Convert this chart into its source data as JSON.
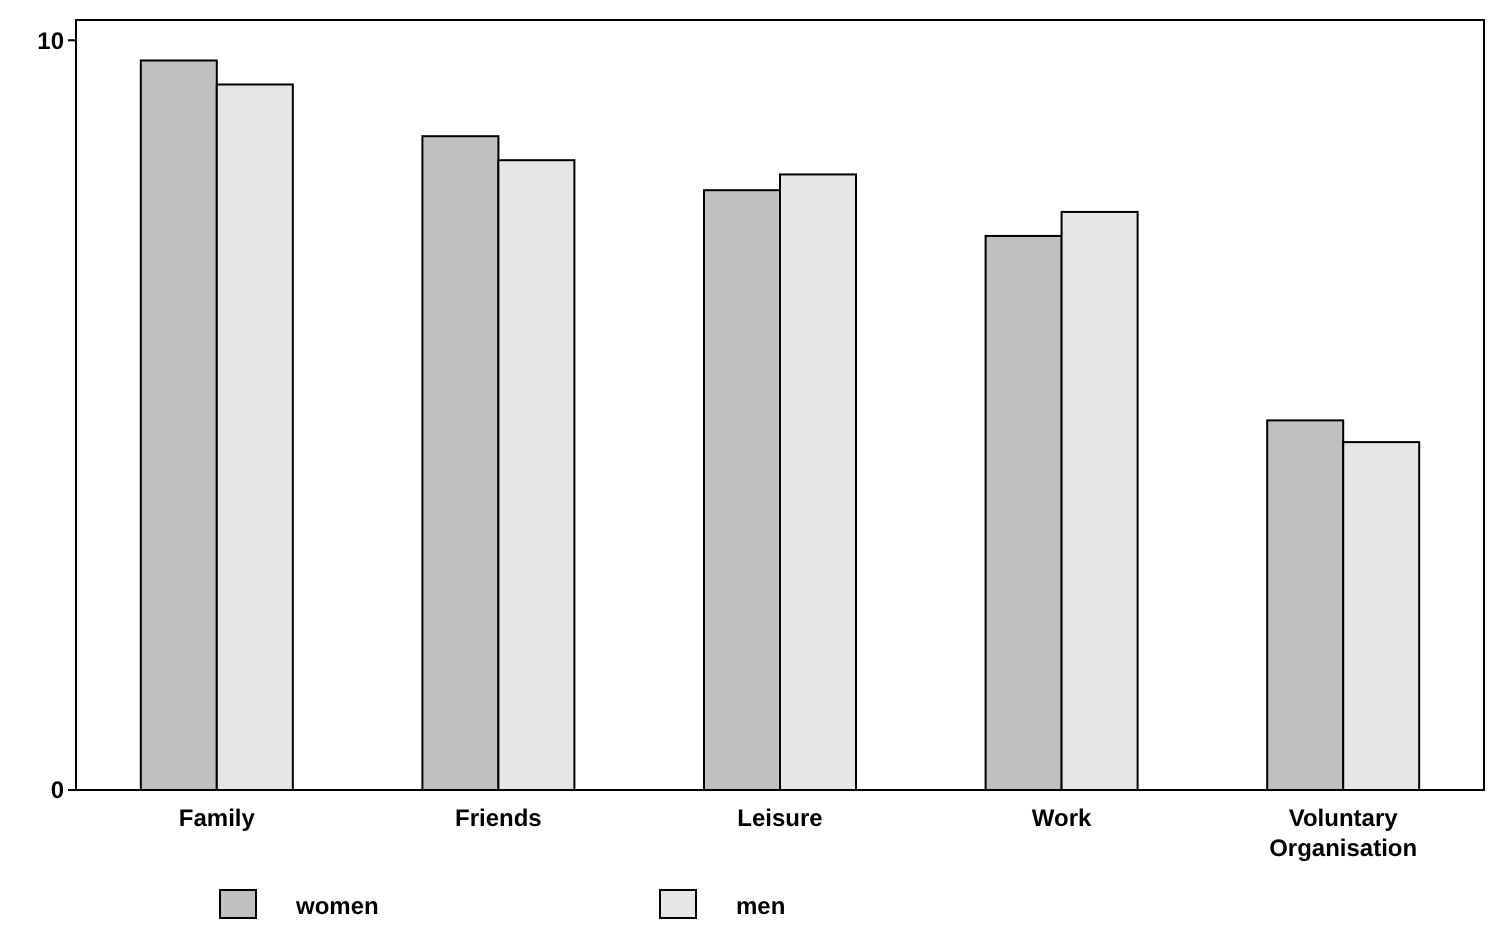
{
  "chart_data": {
    "type": "bar",
    "categories": [
      "Family",
      "Friends",
      "Leisure",
      "Work",
      "Voluntary Organisation"
    ],
    "series": [
      {
        "name": "women",
        "color": "#c0c0c0",
        "values": [
          9.73,
          8.72,
          8.0,
          7.39,
          4.93
        ]
      },
      {
        "name": "men",
        "color": "#e6e6e6",
        "values": [
          9.41,
          8.4,
          8.21,
          7.71,
          4.64
        ]
      }
    ],
    "ylim": [
      0,
      10.27
    ],
    "yticks": [
      0,
      10
    ],
    "grid": false,
    "legend": "bottom"
  }
}
